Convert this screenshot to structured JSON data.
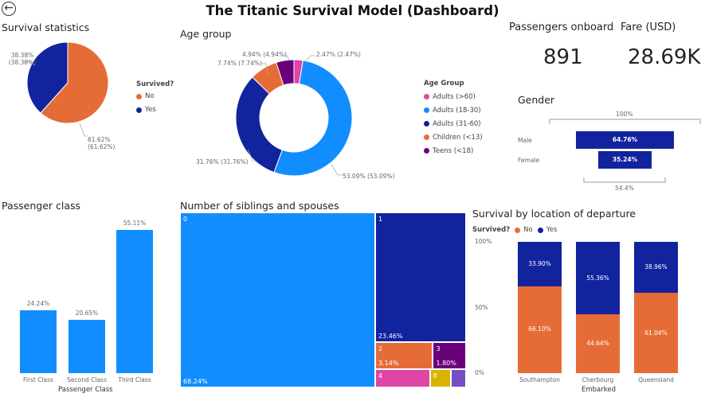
{
  "header": {
    "title": "The Titanic Survival Model (Dashboard)",
    "back_icon": "back-arrow-icon"
  },
  "colors": {
    "orange": "#E66C37",
    "navy": "#12239E",
    "blue": "#118DFF",
    "pink": "#E044A7",
    "purple": "#6B007B",
    "gold": "#D9B300",
    "lavender": "#744EC2"
  },
  "chart_data": [
    {
      "id": "survival",
      "type": "pie",
      "title": "Survival statistics",
      "legend_title": "Survived?",
      "legend_position": "right",
      "slices": [
        {
          "label": "No",
          "value": 61.62,
          "data_label": "61.62%\n(61.62%)",
          "color": "#E66C37"
        },
        {
          "label": "Yes",
          "value": 38.38,
          "data_label": "38.38%\n(38.38%)",
          "color": "#12239E"
        }
      ]
    },
    {
      "id": "age",
      "type": "pie",
      "title": "Age group",
      "legend_title": "Age Group",
      "legend_position": "right",
      "slices": [
        {
          "label": "Adults (>60)",
          "value": 2.47,
          "data_label": "2.47% (2.47%)",
          "color": "#E044A7"
        },
        {
          "label": "Adults (18-30)",
          "value": 53.09,
          "data_label": "53.09% (53.09%)",
          "color": "#118DFF"
        },
        {
          "label": "Adults (31-60)",
          "value": 31.76,
          "data_label": "31.76% (31.76%)",
          "color": "#12239E"
        },
        {
          "label": "Children (<13)",
          "value": 7.74,
          "data_label": "7.74% (7.74%)",
          "color": "#E66C37"
        },
        {
          "label": "Teens (<18)",
          "value": 4.94,
          "data_label": "4.94% (4.94%)",
          "color": "#6B007B"
        }
      ]
    },
    {
      "id": "gender",
      "type": "bar",
      "title": "Gender",
      "categories": [
        "Male",
        "Female"
      ],
      "values": [
        64.76,
        35.24
      ],
      "data_labels": [
        "64.76%",
        "35.24%"
      ],
      "top_label": "100%",
      "bottom_label": "54.4%"
    },
    {
      "id": "pclass",
      "type": "bar",
      "title": "Passenger class",
      "xlabel": "Passenger Class",
      "categories": [
        "First Class",
        "Second Class",
        "Third Class"
      ],
      "values": [
        24.24,
        20.65,
        55.11
      ],
      "data_labels": [
        "24.24%",
        "20.65%",
        "55.11%"
      ]
    },
    {
      "id": "sibsp",
      "type": "treemap",
      "title": "Number of siblings and spouses",
      "items": [
        {
          "label": "0",
          "value": 68.24,
          "value_label": "68.24%",
          "color": "#118DFF"
        },
        {
          "label": "1",
          "value": 23.46,
          "value_label": "23.46%",
          "color": "#12239E"
        },
        {
          "label": "2",
          "value": 3.14,
          "value_label": "3.14%",
          "color": "#E66C37"
        },
        {
          "label": "3",
          "value": 1.8,
          "value_label": "1.80%",
          "color": "#6B007B"
        },
        {
          "label": "4",
          "value": 2.02,
          "value_label": "",
          "color": "#E044A7"
        },
        {
          "label": "8",
          "value": 0.78,
          "value_label": "",
          "color": "#D9B300"
        },
        {
          "label": "",
          "value": 0.56,
          "value_label": "",
          "color": "#744EC2"
        }
      ]
    },
    {
      "id": "embarked",
      "type": "bar",
      "stacked": "100%",
      "title": "Survival by location of departure",
      "legend_title": "Survived?",
      "legend_position": "top-left",
      "xlabel": "Embarked",
      "categories": [
        "Southampton",
        "Cherbourg",
        "Queensland"
      ],
      "yticks": [
        "0%",
        "50%",
        "100%"
      ],
      "series": [
        {
          "name": "No",
          "color": "#E66C37",
          "values": [
            66.1,
            44.64,
            61.04
          ],
          "labels": [
            "66.10%",
            "44.64%",
            "61.04%"
          ]
        },
        {
          "name": "Yes",
          "color": "#12239E",
          "values": [
            33.9,
            55.36,
            38.96
          ],
          "labels": [
            "33.90%",
            "55.36%",
            "38.96%"
          ]
        }
      ]
    }
  ],
  "cards": {
    "passengers": {
      "label": "Passengers onboard",
      "value": "891"
    },
    "fare": {
      "label": "Fare (USD)",
      "value": "28.69K"
    }
  }
}
